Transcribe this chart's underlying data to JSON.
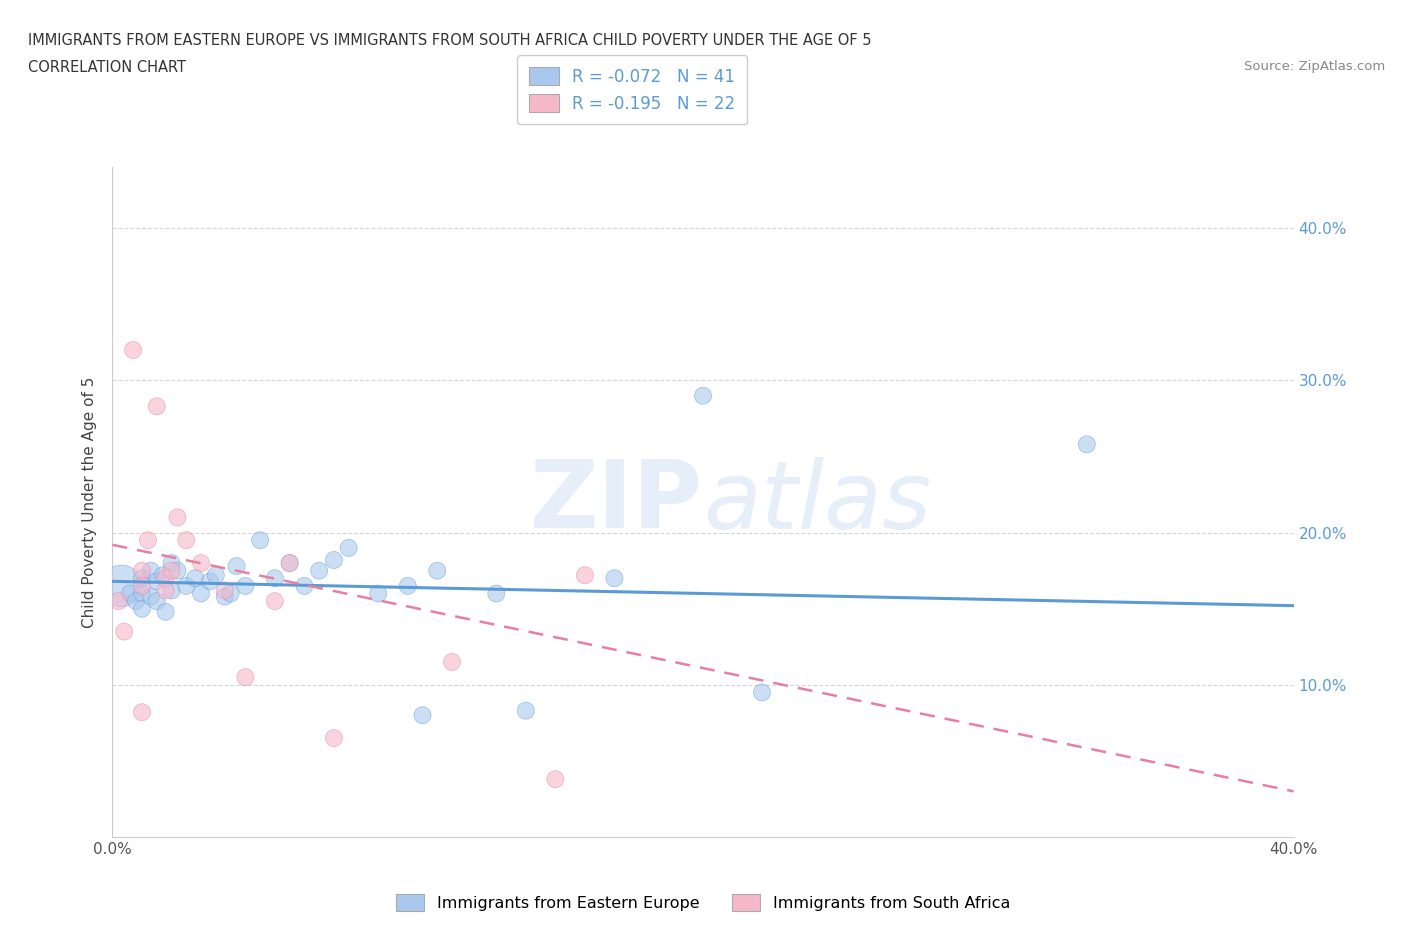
{
  "title_line1": "IMMIGRANTS FROM EASTERN EUROPE VS IMMIGRANTS FROM SOUTH AFRICA CHILD POVERTY UNDER THE AGE OF 5",
  "title_line2": "CORRELATION CHART",
  "source_text": "Source: ZipAtlas.com",
  "ylabel": "Child Poverty Under the Age of 5",
  "watermark": "ZIPatlas",
  "xlim": [
    0.0,
    0.4
  ],
  "ylim": [
    0.0,
    0.44
  ],
  "xticks": [
    0.0,
    0.1,
    0.2,
    0.3,
    0.4
  ],
  "xtick_labels": [
    "0.0%",
    "",
    "",
    "",
    "40.0%"
  ],
  "yticks": [
    0.1,
    0.2,
    0.3,
    0.4
  ],
  "ytick_labels_right": [
    "10.0%",
    "20.0%",
    "30.0%",
    "40.0%"
  ],
  "legend_r1": "R = -0.072",
  "legend_n1": "N = 41",
  "legend_r2": "R = -0.195",
  "legend_n2": "N = 22",
  "color_blue": "#aac8ee",
  "color_pink": "#f5b8ca",
  "line_blue": "#5b9bd5",
  "line_pink": "#e87fa0",
  "text_blue": "#5b9bd5",
  "background_color": "#ffffff",
  "grid_color": "#cccccc",
  "blue_scatter_x": [
    0.003,
    0.006,
    0.008,
    0.01,
    0.01,
    0.01,
    0.013,
    0.013,
    0.015,
    0.015,
    0.017,
    0.018,
    0.02,
    0.02,
    0.022,
    0.025,
    0.028,
    0.03,
    0.033,
    0.035,
    0.038,
    0.04,
    0.042,
    0.045,
    0.05,
    0.055,
    0.06,
    0.065,
    0.07,
    0.075,
    0.08,
    0.09,
    0.1,
    0.105,
    0.11,
    0.13,
    0.14,
    0.17,
    0.2,
    0.22,
    0.33
  ],
  "blue_scatter_y": [
    0.165,
    0.16,
    0.155,
    0.17,
    0.16,
    0.15,
    0.175,
    0.158,
    0.168,
    0.155,
    0.172,
    0.148,
    0.18,
    0.162,
    0.175,
    0.165,
    0.17,
    0.16,
    0.168,
    0.172,
    0.158,
    0.16,
    0.178,
    0.165,
    0.195,
    0.17,
    0.18,
    0.165,
    0.175,
    0.182,
    0.19,
    0.16,
    0.165,
    0.08,
    0.175,
    0.16,
    0.083,
    0.17,
    0.29,
    0.095,
    0.258
  ],
  "blue_scatter_size": [
    900,
    150,
    150,
    150,
    150,
    150,
    150,
    150,
    150,
    150,
    150,
    150,
    150,
    150,
    150,
    150,
    150,
    150,
    150,
    150,
    150,
    150,
    150,
    150,
    150,
    150,
    150,
    150,
    150,
    150,
    150,
    150,
    150,
    150,
    150,
    150,
    150,
    150,
    150,
    150,
    150
  ],
  "pink_scatter_x": [
    0.002,
    0.004,
    0.007,
    0.01,
    0.01,
    0.01,
    0.012,
    0.015,
    0.018,
    0.018,
    0.02,
    0.022,
    0.025,
    0.03,
    0.038,
    0.045,
    0.055,
    0.06,
    0.075,
    0.115,
    0.15,
    0.16
  ],
  "pink_scatter_y": [
    0.155,
    0.135,
    0.32,
    0.175,
    0.165,
    0.082,
    0.195,
    0.283,
    0.17,
    0.162,
    0.175,
    0.21,
    0.195,
    0.18,
    0.162,
    0.105,
    0.155,
    0.18,
    0.065,
    0.115,
    0.038,
    0.172
  ],
  "pink_scatter_size": [
    150,
    150,
    150,
    150,
    150,
    150,
    150,
    150,
    150,
    150,
    150,
    150,
    150,
    150,
    150,
    150,
    150,
    150,
    150,
    150,
    150,
    150
  ],
  "blue_line_x0": 0.0,
  "blue_line_y0": 0.168,
  "blue_line_x1": 0.4,
  "blue_line_y1": 0.152,
  "pink_line_x0": 0.0,
  "pink_line_y0": 0.192,
  "pink_line_x1": 0.4,
  "pink_line_y1": 0.03
}
